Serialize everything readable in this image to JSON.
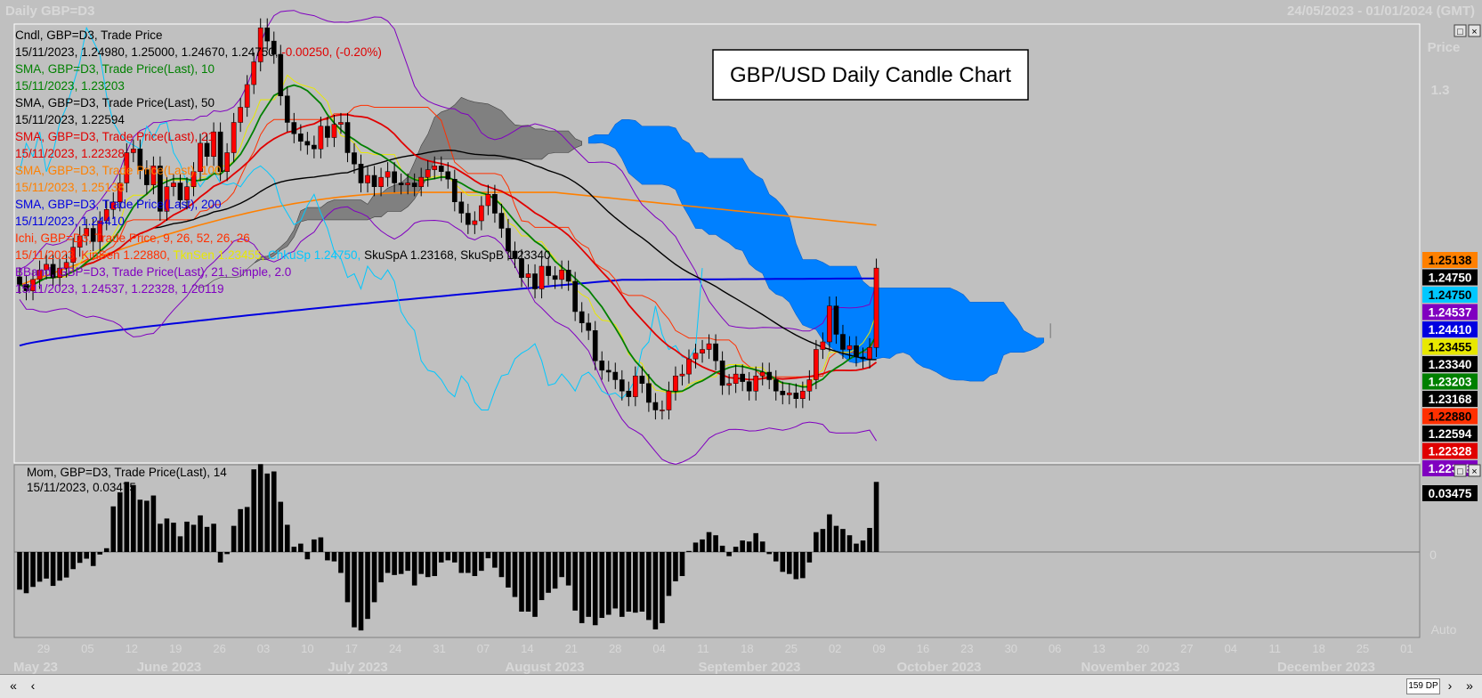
{
  "window": {
    "title_left": "Daily GBP=D3",
    "title_right": "24/05/2023 - 01/01/2024 (GMT)"
  },
  "chart_title": "GBP/USD Daily Candle Chart",
  "legend": [
    {
      "text": "Cndl, GBP=D3, Trade Price",
      "color": "#000000"
    },
    {
      "text": "15/11/2023, 1.24980, 1.25000, 1.24670, 1.24750,",
      "color": "#000000",
      "extra": "-0.00250, (-0.20%)",
      "extra_color": "#e00000"
    },
    {
      "text": "SMA, GBP=D3, Trade Price(Last),  10",
      "color": "#008000"
    },
    {
      "text": "15/11/2023, 1.23203",
      "color": "#008000"
    },
    {
      "text": "SMA, GBP=D3, Trade Price(Last),  50",
      "color": "#000000"
    },
    {
      "text": "15/11/2023, 1.22594",
      "color": "#000000"
    },
    {
      "text": "SMA, GBP=D3, Trade Price(Last),  21",
      "color": "#e00000"
    },
    {
      "text": "15/11/2023, 1.22328",
      "color": "#e00000"
    },
    {
      "text": "SMA, GBP=D3, Trade Price(Last),  100",
      "color": "#ff8000"
    },
    {
      "text": "15/11/2023, 1.25138",
      "color": "#ff8000"
    },
    {
      "text": "SMA, GBP=D3, Trade Price(Last),  200",
      "color": "#0000e0"
    },
    {
      "text": "15/11/2023, 1.24410",
      "color": "#0000e0"
    },
    {
      "text": "Ichi, GBP=D3, Trade Price,  9, 26, 52, 26, 26",
      "color": "#ff3000"
    },
    {
      "segments": [
        {
          "text": "15/11/2023, KinSen 1.22880, ",
          "color": "#ff3000"
        },
        {
          "text": "TknSen 1.23455, ",
          "color": "#e8e800"
        },
        {
          "text": "ChkuSp 1.24750, ",
          "color": "#00c8ff"
        },
        {
          "text": "SkuSpA 1.23168, SkuSpB 1.23340",
          "color": "#000000"
        }
      ]
    },
    {
      "text": "BBand, GBP=D3, Trade Price(Last),  21, Simple, 2.0",
      "color": "#8000c0"
    },
    {
      "text": "15/11/2023, 1.24537, 1.22328, 1.20119",
      "color": "#8000c0"
    }
  ],
  "momentum_legend": [
    "Mom, GBP=D3, Trade Price(Last),  14",
    "15/11/2023, 0.03475"
  ],
  "axis": {
    "price_label": "Price",
    "price_tick": "1.3",
    "mom_zero": "0",
    "mom_auto": "Auto",
    "x_ticks": [
      "29",
      "05",
      "12",
      "19",
      "26",
      "03",
      "10",
      "17",
      "24",
      "31",
      "07",
      "14",
      "21",
      "28",
      "04",
      "11",
      "18",
      "25",
      "02",
      "09",
      "16",
      "23",
      "30",
      "06",
      "13",
      "20",
      "27",
      "04",
      "11",
      "18",
      "25",
      "01"
    ],
    "months": [
      "May 23",
      "June 2023",
      "July 2023",
      "August 2023",
      "September 2023",
      "October 2023",
      "November 2023",
      "December 2023"
    ]
  },
  "price_tags": [
    {
      "value": "1.25138",
      "bg": "#ff8000",
      "fg": "#000000"
    },
    {
      "value": "1.24750",
      "bg": "#000000",
      "fg": "#ffffff"
    },
    {
      "value": "1.24750",
      "bg": "#00c8ff",
      "fg": "#000000"
    },
    {
      "value": "1.24537",
      "bg": "#8000c0",
      "fg": "#ffffff"
    },
    {
      "value": "1.24410",
      "bg": "#0000e0",
      "fg": "#ffffff"
    },
    {
      "value": "1.23455",
      "bg": "#e8e800",
      "fg": "#000000"
    },
    {
      "value": "1.23340",
      "bg": "#000000",
      "fg": "#ffffff"
    },
    {
      "value": "1.23203",
      "bg": "#008000",
      "fg": "#ffffff"
    },
    {
      "value": "1.23168",
      "bg": "#000000",
      "fg": "#ffffff"
    },
    {
      "value": "1.22880",
      "bg": "#ff3000",
      "fg": "#000000"
    },
    {
      "value": "1.22594",
      "bg": "#000000",
      "fg": "#ffffff"
    },
    {
      "value": "1.22328",
      "bg": "#e00000",
      "fg": "#ffffff"
    },
    {
      "value": "1.22328",
      "bg": "#8000c0",
      "fg": "#ffffff"
    }
  ],
  "mom_tag": "0.03475",
  "scrollbar": {
    "left1": "«",
    "left2": "‹",
    "right1": "›",
    "right2": "»",
    "dp": "159 DP"
  },
  "chart_data": {
    "type": "candlestick",
    "title": "GBP/USD Daily Candle Chart",
    "ylim": [
      1.196,
      1.312
    ],
    "mom_ylim": [
      -0.05,
      0.045
    ],
    "closes": [
      1.2432,
      1.2415,
      1.2445,
      1.247,
      1.2485,
      1.245,
      1.2475,
      1.249,
      1.253,
      1.256,
      1.258,
      1.2545,
      1.26,
      1.263,
      1.265,
      1.27,
      1.278,
      1.279,
      1.2735,
      1.2695,
      1.2745,
      1.2625,
      1.269,
      1.27,
      1.2655,
      1.269,
      1.273,
      1.2805,
      1.277,
      1.2835,
      1.273,
      1.278,
      1.286,
      1.29,
      1.296,
      1.302,
      1.311,
      1.3075,
      1.304,
      1.293,
      1.286,
      1.283,
      1.281,
      1.28,
      1.279,
      1.285,
      1.282,
      1.2855,
      1.286,
      1.278,
      1.275,
      1.27,
      1.272,
      1.269,
      1.2715,
      1.273,
      1.27,
      1.2695,
      1.27,
      1.269,
      1.2715,
      1.2735,
      1.2745,
      1.273,
      1.271,
      1.265,
      1.262,
      1.259,
      1.26,
      1.264,
      1.267,
      1.262,
      1.258,
      1.252,
      1.25,
      1.245,
      1.246,
      1.242,
      1.248,
      1.2455,
      1.2445,
      1.247,
      1.244,
      1.236,
      1.233,
      1.231,
      1.223,
      1.2205,
      1.22,
      1.218,
      1.215,
      1.2135,
      1.219,
      1.217,
      1.212,
      1.21,
      1.21,
      1.215,
      1.219,
      1.2195,
      1.2235,
      1.225,
      1.226,
      1.2275,
      1.223,
      1.2165,
      1.217,
      1.2195,
      1.2175,
      1.215,
      1.219,
      1.22,
      1.218,
      1.215,
      1.214,
      1.2145,
      1.213,
      1.215,
      1.218,
      1.226,
      1.228,
      1.2375,
      1.23,
      1.226,
      1.227,
      1.224,
      1.2235,
      1.2265,
      1.2475
    ],
    "series": [
      {
        "name": "SMA 10",
        "color": "#008000",
        "last": 1.23203
      },
      {
        "name": "SMA 50",
        "color": "#000000",
        "last": 1.22594
      },
      {
        "name": "SMA 21",
        "color": "#e00000",
        "last": 1.22328
      },
      {
        "name": "SMA 100",
        "color": "#ff8000",
        "last": 1.25138
      },
      {
        "name": "SMA 200",
        "color": "#0000e0",
        "last": 1.2441
      },
      {
        "name": "BBand",
        "color": "#8000c0",
        "last": [
          1.24537,
          1.22328,
          1.20119
        ]
      },
      {
        "name": "KinSen",
        "color": "#ff3000",
        "last": 1.2288
      },
      {
        "name": "TknSen",
        "color": "#e8e800",
        "last": 1.23455
      },
      {
        "name": "ChkuSp",
        "color": "#00c8ff",
        "last": 1.2475
      },
      {
        "name": "SkuSpA",
        "color": "#000000",
        "last": 1.23168
      },
      {
        "name": "SkuSpB",
        "color": "#000000",
        "last": 1.2334
      }
    ],
    "last_candle": {
      "date": "15/11/2023",
      "open": 1.2498,
      "high": 1.25,
      "low": 1.2467,
      "close": 1.2475
    },
    "momentum_last": 0.03475
  }
}
